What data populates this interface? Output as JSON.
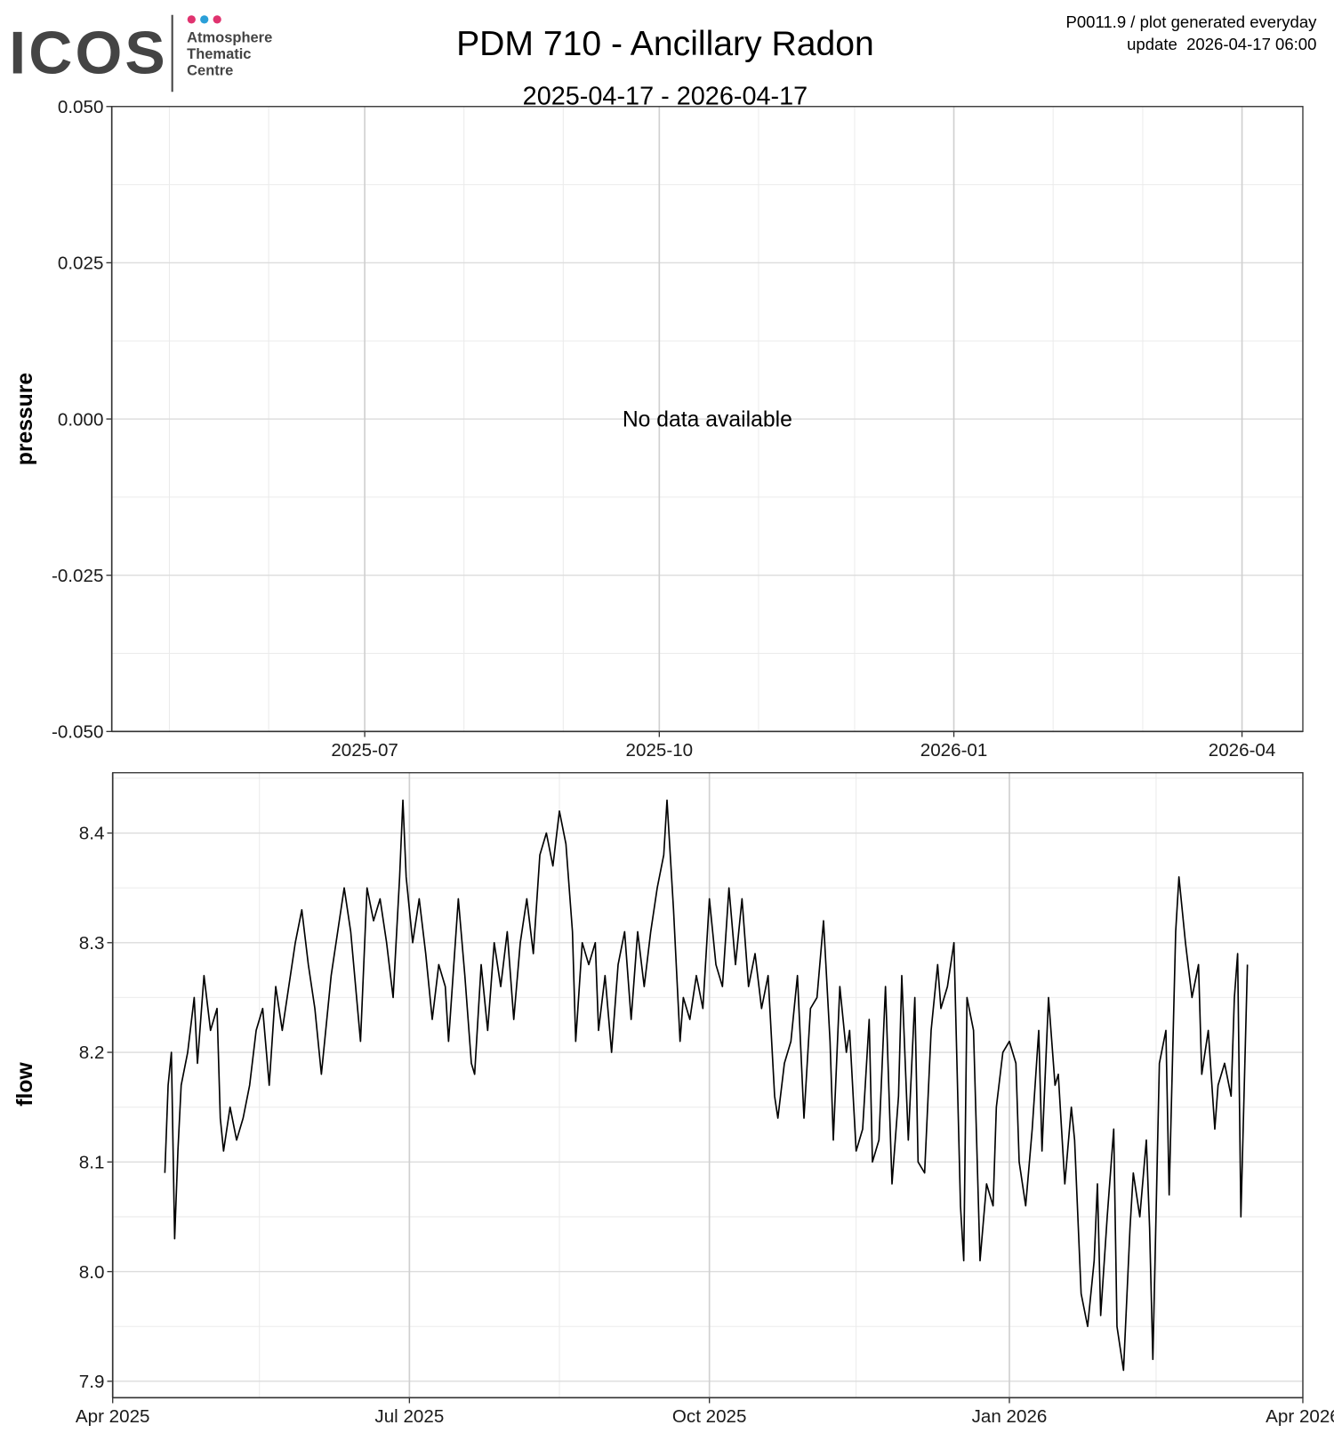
{
  "header": {
    "logo": "ICOS",
    "logo_lines": [
      "Atmosphere",
      "Thematic",
      "Centre"
    ],
    "title": "PDM 710 - Ancillary Radon",
    "subtitle": "2025-04-17 - 2026-04-17",
    "notes": [
      "P0011.9 / plot generated everyday",
      "update  2026-04-17 06:00"
    ]
  },
  "chart_data": [
    {
      "type": "line",
      "y_label": "pressure",
      "annotation": "No data available",
      "x": [],
      "values": [],
      "color": "#000000",
      "xlim": [
        "2025-04-13",
        "2026-04-20"
      ],
      "xticks": [
        {
          "value": "2025-07-01",
          "label": "2025-07"
        },
        {
          "value": "2025-10-01",
          "label": "2025-10"
        },
        {
          "value": "2026-01-01",
          "label": "2026-01"
        },
        {
          "value": "2026-04-01",
          "label": "2026-04"
        }
      ],
      "x_minor_ticks": [
        "2025-05-01",
        "2025-06-01",
        "2025-08-01",
        "2025-09-01",
        "2025-11-01",
        "2025-12-01",
        "2026-02-01",
        "2026-03-01"
      ],
      "ylim": [
        -0.05,
        0.05
      ],
      "yticks": [
        {
          "value": -0.05,
          "label": "-0.050"
        },
        {
          "value": -0.025,
          "label": "-0.025"
        },
        {
          "value": 0,
          "label": "0.000"
        },
        {
          "value": 0.025,
          "label": "0.025"
        },
        {
          "value": 0.05,
          "label": "0.050"
        }
      ],
      "y_minor_ticks": [
        -0.0375,
        -0.0125,
        0.0125,
        0.0375
      ],
      "grid": true
    },
    {
      "type": "line",
      "y_label": "flow",
      "color": "#000000",
      "x": [
        "2025-04-17",
        "2025-04-18",
        "2025-04-19",
        "2025-04-20",
        "2025-04-21",
        "2025-04-22",
        "2025-04-24",
        "2025-04-26",
        "2025-04-27",
        "2025-04-29",
        "2025-05-01",
        "2025-05-03",
        "2025-05-04",
        "2025-05-05",
        "2025-05-07",
        "2025-05-09",
        "2025-05-11",
        "2025-05-13",
        "2025-05-15",
        "2025-05-17",
        "2025-05-19",
        "2025-05-21",
        "2025-05-23",
        "2025-05-25",
        "2025-05-27",
        "2025-05-29",
        "2025-05-31",
        "2025-06-02",
        "2025-06-04",
        "2025-06-07",
        "2025-06-09",
        "2025-06-11",
        "2025-06-13",
        "2025-06-16",
        "2025-06-18",
        "2025-06-20",
        "2025-06-22",
        "2025-06-24",
        "2025-06-26",
        "2025-06-28",
        "2025-06-29",
        "2025-06-30",
        "2025-07-02",
        "2025-07-04",
        "2025-07-06",
        "2025-07-08",
        "2025-07-10",
        "2025-07-12",
        "2025-07-13",
        "2025-07-16",
        "2025-07-18",
        "2025-07-20",
        "2025-07-21",
        "2025-07-23",
        "2025-07-25",
        "2025-07-27",
        "2025-07-29",
        "2025-07-31",
        "2025-08-02",
        "2025-08-04",
        "2025-08-06",
        "2025-08-08",
        "2025-08-10",
        "2025-08-12",
        "2025-08-14",
        "2025-08-16",
        "2025-08-18",
        "2025-08-20",
        "2025-08-21",
        "2025-08-23",
        "2025-08-25",
        "2025-08-27",
        "2025-08-28",
        "2025-08-30",
        "2025-09-01",
        "2025-09-03",
        "2025-09-05",
        "2025-09-07",
        "2025-09-09",
        "2025-09-11",
        "2025-09-13",
        "2025-09-15",
        "2025-09-17",
        "2025-09-18",
        "2025-09-20",
        "2025-09-22",
        "2025-09-23",
        "2025-09-25",
        "2025-09-27",
        "2025-09-29",
        "2025-10-01",
        "2025-10-03",
        "2025-10-05",
        "2025-10-07",
        "2025-10-09",
        "2025-10-11",
        "2025-10-13",
        "2025-10-15",
        "2025-10-17",
        "2025-10-19",
        "2025-10-21",
        "2025-10-22",
        "2025-10-24",
        "2025-10-26",
        "2025-10-28",
        "2025-10-30",
        "2025-11-01",
        "2025-11-03",
        "2025-11-05",
        "2025-11-07",
        "2025-11-08",
        "2025-11-10",
        "2025-11-12",
        "2025-11-13",
        "2025-11-15",
        "2025-11-17",
        "2025-11-19",
        "2025-11-20",
        "2025-11-22",
        "2025-11-24",
        "2025-11-26",
        "2025-11-28",
        "2025-11-29",
        "2025-12-01",
        "2025-12-03",
        "2025-12-04",
        "2025-12-06",
        "2025-12-08",
        "2025-12-10",
        "2025-12-11",
        "2025-12-13",
        "2025-12-15",
        "2025-12-17",
        "2025-12-18",
        "2025-12-19",
        "2025-12-21",
        "2025-12-23",
        "2025-12-25",
        "2025-12-27",
        "2025-12-28",
        "2025-12-30",
        "2026-01-01",
        "2026-01-03",
        "2026-01-04",
        "2026-01-06",
        "2026-01-08",
        "2026-01-10",
        "2026-01-11",
        "2026-01-13",
        "2026-01-15",
        "2026-01-16",
        "2026-01-18",
        "2026-01-20",
        "2026-01-21",
        "2026-01-23",
        "2026-01-25",
        "2026-01-27",
        "2026-01-28",
        "2026-01-29",
        "2026-01-31",
        "2026-02-02",
        "2026-02-03",
        "2026-02-05",
        "2026-02-07",
        "2026-02-08",
        "2026-02-10",
        "2026-02-12",
        "2026-02-13",
        "2026-02-14",
        "2026-02-16",
        "2026-02-18",
        "2026-02-19",
        "2026-02-21",
        "2026-02-22",
        "2026-02-24",
        "2026-02-26",
        "2026-02-28",
        "2026-03-01",
        "2026-03-03",
        "2026-03-05",
        "2026-03-06",
        "2026-03-08",
        "2026-03-10",
        "2026-03-11",
        "2026-03-12",
        "2026-03-13",
        "2026-03-15"
      ],
      "values": [
        8.09,
        8.17,
        8.2,
        8.03,
        8.11,
        8.17,
        8.2,
        8.25,
        8.19,
        8.27,
        8.22,
        8.24,
        8.14,
        8.11,
        8.15,
        8.12,
        8.14,
        8.17,
        8.22,
        8.24,
        8.17,
        8.26,
        8.22,
        8.26,
        8.3,
        8.33,
        8.28,
        8.24,
        8.18,
        8.27,
        8.31,
        8.35,
        8.31,
        8.21,
        8.35,
        8.32,
        8.34,
        8.3,
        8.25,
        8.36,
        8.43,
        8.36,
        8.3,
        8.34,
        8.29,
        8.23,
        8.28,
        8.26,
        8.21,
        8.34,
        8.27,
        8.19,
        8.18,
        8.28,
        8.22,
        8.3,
        8.26,
        8.31,
        8.23,
        8.3,
        8.34,
        8.29,
        8.38,
        8.4,
        8.37,
        8.42,
        8.39,
        8.31,
        8.21,
        8.3,
        8.28,
        8.3,
        8.22,
        8.27,
        8.2,
        8.28,
        8.31,
        8.23,
        8.31,
        8.26,
        8.31,
        8.35,
        8.38,
        8.43,
        8.33,
        8.21,
        8.25,
        8.23,
        8.27,
        8.24,
        8.34,
        8.28,
        8.26,
        8.35,
        8.28,
        8.34,
        8.26,
        8.29,
        8.24,
        8.27,
        8.16,
        8.14,
        8.19,
        8.21,
        8.27,
        8.14,
        8.24,
        8.25,
        8.32,
        8.21,
        8.12,
        8.26,
        8.2,
        8.22,
        8.11,
        8.13,
        8.23,
        8.1,
        8.12,
        8.26,
        8.08,
        8.16,
        8.27,
        8.12,
        8.25,
        8.1,
        8.09,
        8.22,
        8.28,
        8.24,
        8.26,
        8.3,
        8.06,
        8.01,
        8.25,
        8.22,
        8.01,
        8.08,
        8.06,
        8.15,
        8.2,
        8.21,
        8.19,
        8.1,
        8.06,
        8.13,
        8.22,
        8.11,
        8.25,
        8.17,
        8.18,
        8.08,
        8.15,
        8.12,
        7.98,
        7.95,
        8.01,
        8.08,
        7.96,
        8.05,
        8.13,
        7.95,
        7.91,
        8.04,
        8.09,
        8.05,
        8.12,
        8.04,
        7.92,
        8.19,
        8.22,
        8.07,
        8.31,
        8.36,
        8.3,
        8.25,
        8.28,
        8.18,
        8.22,
        8.13,
        8.17,
        8.19,
        8.16,
        8.25,
        8.29,
        8.05,
        8.28
      ],
      "xlim": [
        "2025-04-01",
        "2026-04-01"
      ],
      "xticks": [
        {
          "value": "2025-04-01",
          "label": "Apr 2025"
        },
        {
          "value": "2025-07-01",
          "label": "Jul 2025"
        },
        {
          "value": "2025-10-01",
          "label": "Oct 2025"
        },
        {
          "value": "2026-01-01",
          "label": "Jan 2026"
        },
        {
          "value": "2026-04-01",
          "label": "Apr 2026"
        }
      ],
      "x_minor_ticks": [
        "2025-05-16",
        "2025-08-16",
        "2025-11-15",
        "2026-02-15"
      ],
      "ylim": [
        7.885,
        8.455
      ],
      "yticks": [
        7.9,
        {
          "value": 8.0,
          "label": "8.0"
        },
        8.1,
        8.2,
        8.3,
        8.4
      ],
      "y_minor_ticks": [
        7.95,
        8.05,
        8.15,
        8.25,
        8.35,
        8.45
      ],
      "grid": true
    }
  ]
}
